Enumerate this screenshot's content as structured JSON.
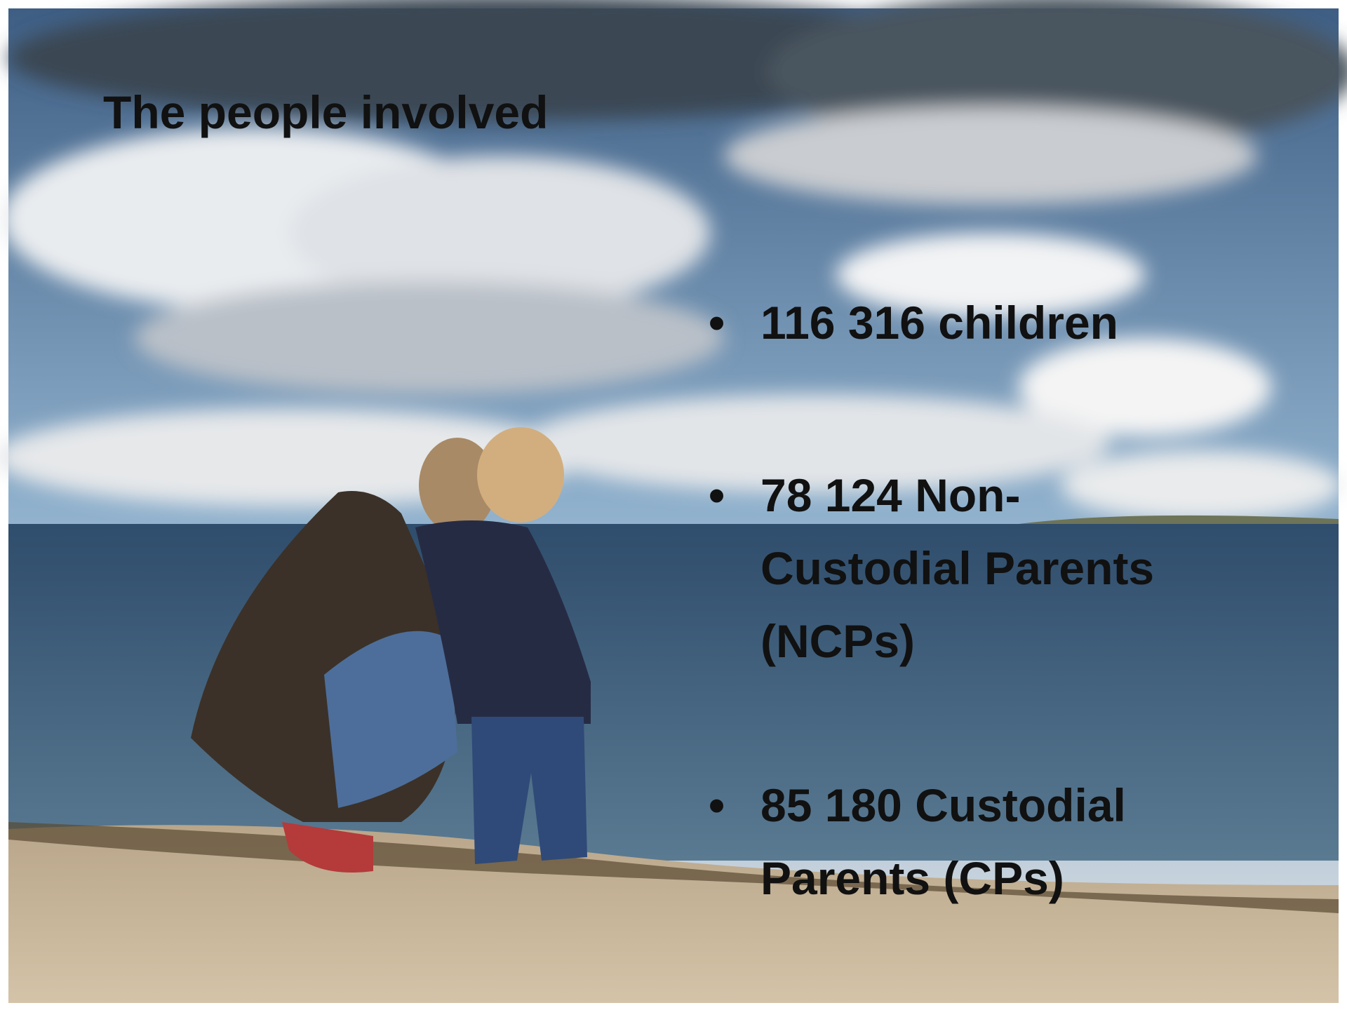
{
  "title": "The people involved",
  "bullets": [
    "116 316 children",
    "78 124 Non-Custodial Parents (NCPs)",
    "85 180 Custodial Parents (CPs)"
  ]
}
